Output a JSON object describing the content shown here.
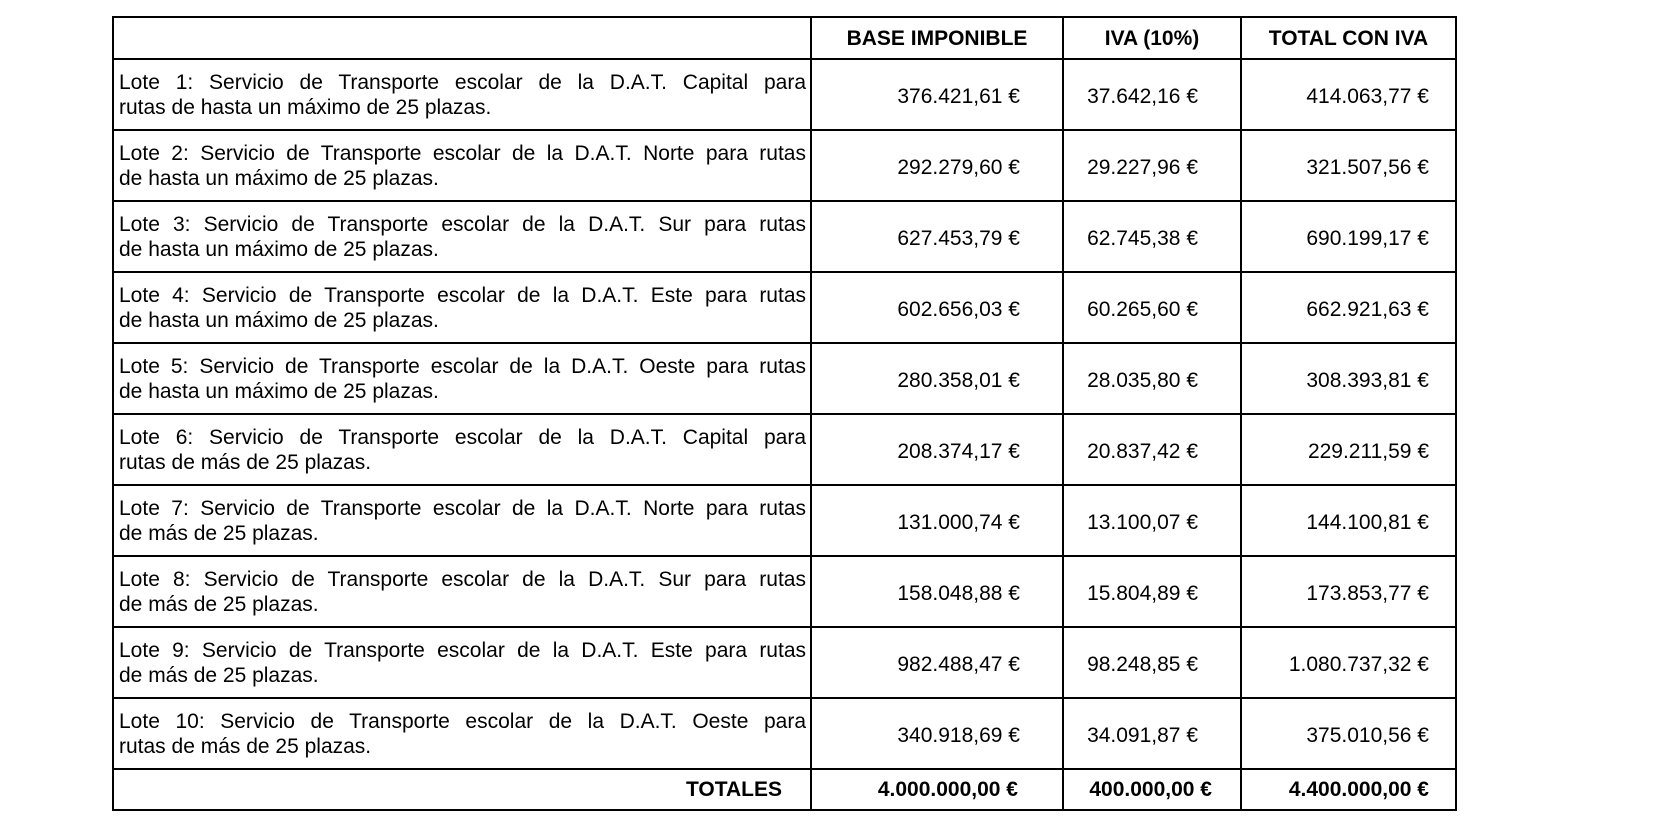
{
  "headers": [
    "",
    "BASE IMPONIBLE",
    "IVA (10%)",
    "TOTAL CON IVA"
  ],
  "rows": [
    {
      "desc": [
        "Lote 1: Servicio de Transporte escolar de la D.A.T. Capital para",
        "rutas de hasta un máximo de 25 plazas."
      ],
      "base": "376.421,61 €",
      "iva": "37.642,16 €",
      "total": "414.063,77 €"
    },
    {
      "desc": [
        "Lote 2: Servicio de Transporte escolar de la D.A.T. Norte para rutas",
        "de hasta un máximo de 25 plazas."
      ],
      "base": "292.279,60 €",
      "iva": "29.227,96 €",
      "total": "321.507,56 €"
    },
    {
      "desc": [
        "Lote 3: Servicio de Transporte escolar de la D.A.T. Sur para rutas",
        "de hasta un máximo de 25 plazas."
      ],
      "base": "627.453,79 €",
      "iva": "62.745,38 €",
      "total": "690.199,17 €"
    },
    {
      "desc": [
        "Lote 4: Servicio de Transporte escolar de la D.A.T. Este para rutas",
        "de hasta un máximo de 25 plazas."
      ],
      "base": "602.656,03 €",
      "iva": "60.265,60 €",
      "total": "662.921,63 €"
    },
    {
      "desc": [
        "Lote 5: Servicio de Transporte escolar de la D.A.T. Oeste para rutas",
        "de hasta un máximo de 25 plazas."
      ],
      "base": "280.358,01 €",
      "iva": "28.035,80 €",
      "total": "308.393,81 €"
    },
    {
      "desc": [
        "Lote 6: Servicio de Transporte escolar de la D.A.T. Capital para",
        "rutas de más de 25 plazas."
      ],
      "base": "208.374,17 €",
      "iva": "20.837,42 €",
      "total": "229.211,59 €"
    },
    {
      "desc": [
        "Lote 7: Servicio de Transporte escolar de la D.A.T. Norte para rutas",
        "de más de 25 plazas."
      ],
      "base": "131.000,74 €",
      "iva": "13.100,07 €",
      "total": "144.100,81 €"
    },
    {
      "desc": [
        "Lote 8: Servicio de Transporte escolar de la D.A.T. Sur para rutas",
        "de más de 25 plazas."
      ],
      "base": "158.048,88 €",
      "iva": "15.804,89 €",
      "total": "173.853,77 €"
    },
    {
      "desc": [
        "Lote 9: Servicio de Transporte escolar de la D.A.T. Este para rutas",
        "de más de 25 plazas."
      ],
      "base": "982.488,47 €",
      "iva": "98.248,85 €",
      "total": "1.080.737,32 €"
    },
    {
      "desc": [
        "Lote 10: Servicio de Transporte escolar de la D.A.T. Oeste para",
        "rutas de más de 25 plazas."
      ],
      "base": "340.918,69 €",
      "iva": "34.091,87 €",
      "total": "375.010,56 €"
    }
  ],
  "totals": {
    "label": "TOTALES",
    "base": "4.000.000,00 €",
    "iva": "400.000,00 €",
    "total": "4.400.000,00 €"
  }
}
